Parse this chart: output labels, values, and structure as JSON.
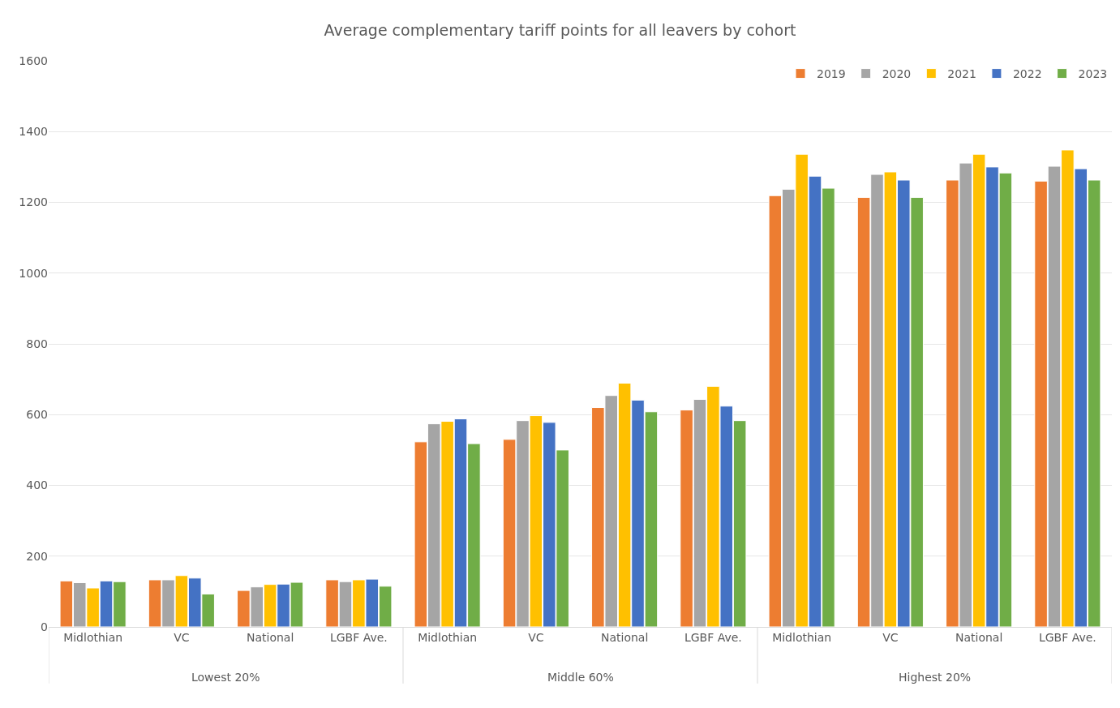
{
  "chart_data": {
    "type": "bar",
    "title": "Average complementary tariff points for all leavers by cohort",
    "categories": [
      "Midlothian",
      "VC",
      "National",
      "LGBF Ave.",
      "Midlothian",
      "VC",
      "National",
      "LGBF Ave.",
      "Midlothian",
      "VC",
      "National",
      "LGBF Ave."
    ],
    "annotations": [
      "Lowest 20%",
      "Middle 60%",
      "Highest 20%"
    ],
    "series": [
      {
        "name": "2019",
        "color": "#ed7d31",
        "values": [
          130,
          133,
          103,
          133,
          523,
          530,
          620,
          613,
          1219,
          1214,
          1263,
          1260
        ]
      },
      {
        "name": "2020",
        "color": "#a5a5a5",
        "values": [
          125,
          133,
          113,
          128,
          574,
          583,
          654,
          643,
          1237,
          1279,
          1311,
          1302
        ]
      },
      {
        "name": "2021",
        "color": "#ffc000",
        "values": [
          110,
          145,
          120,
          133,
          581,
          597,
          689,
          680,
          1336,
          1286,
          1336,
          1348
        ]
      },
      {
        "name": "2022",
        "color": "#4472c4",
        "values": [
          130,
          138,
          121,
          135,
          588,
          578,
          641,
          624,
          1274,
          1263,
          1300,
          1295
        ]
      },
      {
        "name": "2023",
        "color": "#70ad47",
        "values": [
          128,
          93,
          126,
          115,
          518,
          500,
          608,
          583,
          1240,
          1214,
          1283,
          1263
        ]
      }
    ],
    "ylim": [
      0,
      1600
    ],
    "yticks": [
      0,
      200,
      400,
      600,
      800,
      1000,
      1200,
      1400,
      1600
    ],
    "grid": "y",
    "legend": "top right"
  }
}
